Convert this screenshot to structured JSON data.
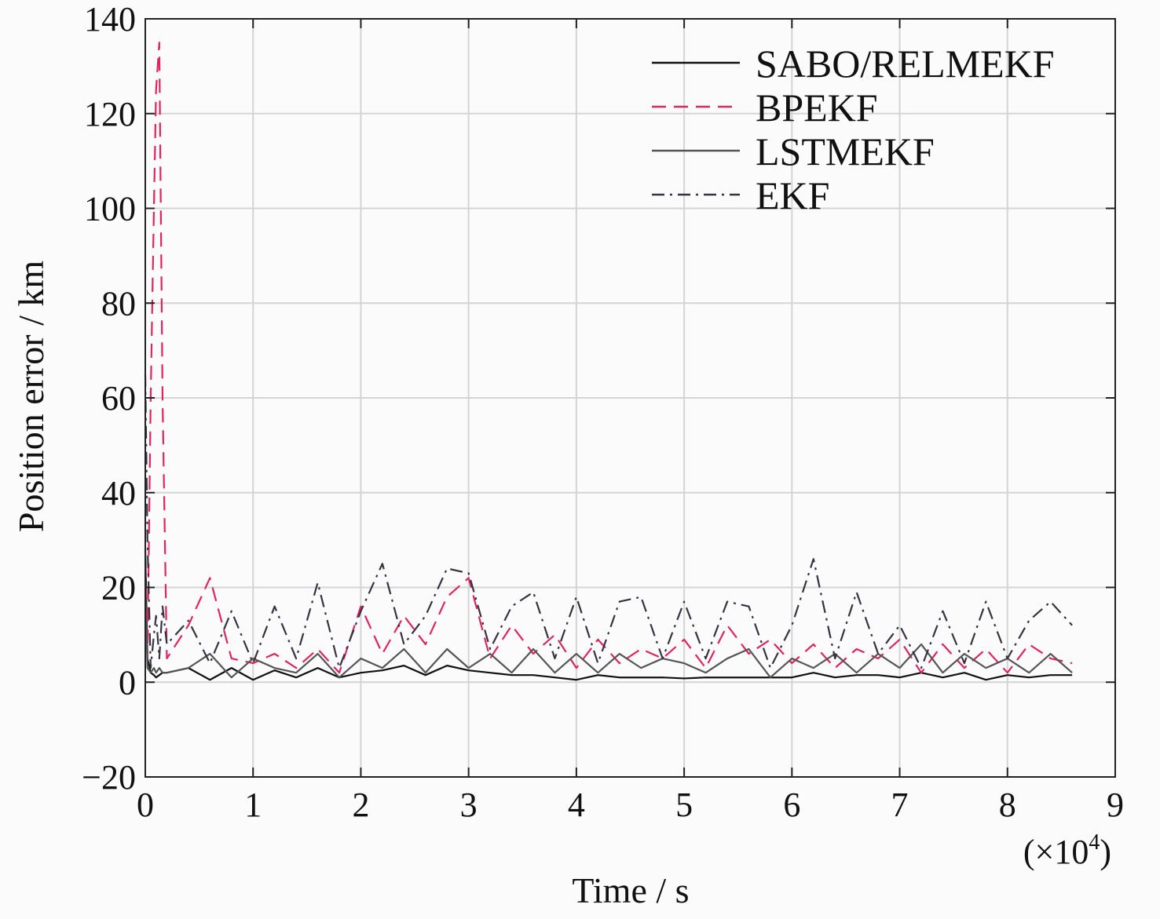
{
  "chart_data": {
    "type": "line",
    "title": "",
    "xlabel": "Time / s",
    "ylabel": "Position error / km",
    "x_multiplier_label": "(×10",
    "x_multiplier_exp": "4",
    "x_multiplier_close": ")",
    "xlim": [
      0,
      90000
    ],
    "ylim": [
      -20,
      140
    ],
    "xticks": [
      0,
      10000,
      20000,
      30000,
      40000,
      50000,
      60000,
      70000,
      80000,
      90000
    ],
    "xtick_labels": [
      "0",
      "1",
      "2",
      "3",
      "4",
      "5",
      "6",
      "7",
      "8",
      "9"
    ],
    "yticks": [
      -20,
      0,
      20,
      40,
      60,
      80,
      100,
      120,
      140
    ],
    "ytick_labels": [
      "−20",
      "0",
      "20",
      "40",
      "60",
      "80",
      "100",
      "120",
      "140"
    ],
    "grid": true,
    "legend_position": "top-right",
    "x": [
      0,
      200,
      500,
      800,
      1000,
      1300,
      1600,
      2000,
      4000,
      6000,
      8000,
      10000,
      12000,
      14000,
      16000,
      18000,
      20000,
      22000,
      24000,
      26000,
      28000,
      30000,
      32000,
      34000,
      36000,
      38000,
      40000,
      42000,
      44000,
      46000,
      48000,
      50000,
      52000,
      54000,
      56000,
      58000,
      60000,
      62000,
      64000,
      66000,
      68000,
      70000,
      72000,
      74000,
      76000,
      78000,
      80000,
      82000,
      84000,
      86000
    ],
    "series": [
      {
        "name": "SABO/RELMEKF",
        "color": "#111111",
        "style": "solid",
        "values": [
          28,
          5,
          2,
          1.5,
          1,
          1.5,
          2,
          2,
          3,
          0.5,
          3,
          0.5,
          2.5,
          1,
          3,
          1,
          2,
          2.5,
          3.5,
          1.5,
          3.5,
          2.5,
          2,
          1.5,
          1.5,
          1,
          0.5,
          1.5,
          1,
          1,
          1,
          0.8,
          1,
          1,
          1,
          1,
          1,
          2,
          1,
          1.5,
          1.5,
          1,
          2,
          1,
          2,
          0.5,
          1.5,
          1,
          1.5,
          1.5
        ]
      },
      {
        "name": "BPEKF",
        "color": "#e0245e",
        "style": "dashed",
        "values": [
          25,
          5,
          60,
          100,
          125,
          135,
          60,
          5,
          12,
          22,
          5,
          4,
          6,
          3,
          7,
          2,
          16,
          6,
          14,
          8,
          18,
          22,
          5,
          12,
          6,
          10,
          3,
          9,
          4,
          7,
          5,
          9,
          3,
          12,
          6,
          9,
          4,
          8,
          3,
          7,
          5,
          9,
          2,
          8,
          3,
          7,
          2,
          8,
          5,
          4
        ]
      },
      {
        "name": "LSTMEKF",
        "color": "#555555",
        "style": "solid",
        "values": [
          20,
          3,
          2,
          3,
          2,
          3,
          2,
          2,
          3,
          6,
          1,
          5,
          3,
          2,
          6,
          1,
          5,
          3,
          7,
          2,
          7,
          3,
          6,
          2,
          7,
          2,
          6,
          2,
          6,
          3,
          5,
          4,
          2,
          5,
          7,
          1,
          5,
          3,
          6,
          2,
          6,
          3,
          8,
          2,
          6,
          3,
          5,
          2,
          6,
          2
        ]
      },
      {
        "name": "EKF",
        "color": "#333344",
        "style": "dashdot",
        "values": [
          65,
          30,
          3,
          10,
          14,
          5,
          16,
          8,
          13,
          4,
          15,
          4,
          16,
          5,
          21,
          3,
          15,
          25,
          8,
          14,
          24,
          23,
          7,
          16,
          19,
          5,
          18,
          4,
          17,
          18,
          5,
          17,
          5,
          17,
          16,
          3,
          12,
          26,
          5,
          19,
          6,
          12,
          3,
          15,
          4,
          17,
          5,
          13,
          17,
          12
        ]
      }
    ]
  }
}
